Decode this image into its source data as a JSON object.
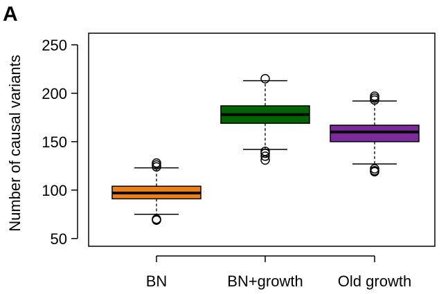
{
  "panel_label": "A",
  "colors": {
    "BN": "#f07f13",
    "BN+growth": "#006400",
    "Old growth": "#7b2c9a",
    "median": "#000000",
    "outline": "#000000"
  },
  "chart_data": {
    "type": "box",
    "title": "",
    "xlabel": "",
    "ylabel": "Number of causal variants",
    "ylim": [
      42,
      262
    ],
    "yticks": [
      50,
      100,
      150,
      200,
      250
    ],
    "categories": [
      "BN",
      "BN+growth",
      "Old growth"
    ],
    "boxes": [
      {
        "name": "BN",
        "q1": 91,
        "median": 97,
        "q3": 104,
        "whisker_low": 75,
        "whisker_high": 123,
        "outliers": [
          128,
          126,
          124,
          70,
          69
        ]
      },
      {
        "name": "BN+growth",
        "q1": 169,
        "median": 178,
        "q3": 187,
        "whisker_low": 142,
        "whisker_high": 213,
        "outliers": [
          215,
          140,
          138,
          135,
          131
        ]
      },
      {
        "name": "Old growth",
        "q1": 150,
        "median": 160,
        "q3": 167,
        "whisker_low": 127,
        "whisker_high": 192,
        "outliers": [
          197,
          195,
          193,
          122,
          120,
          119
        ]
      }
    ],
    "grid": false,
    "legend": "none"
  }
}
